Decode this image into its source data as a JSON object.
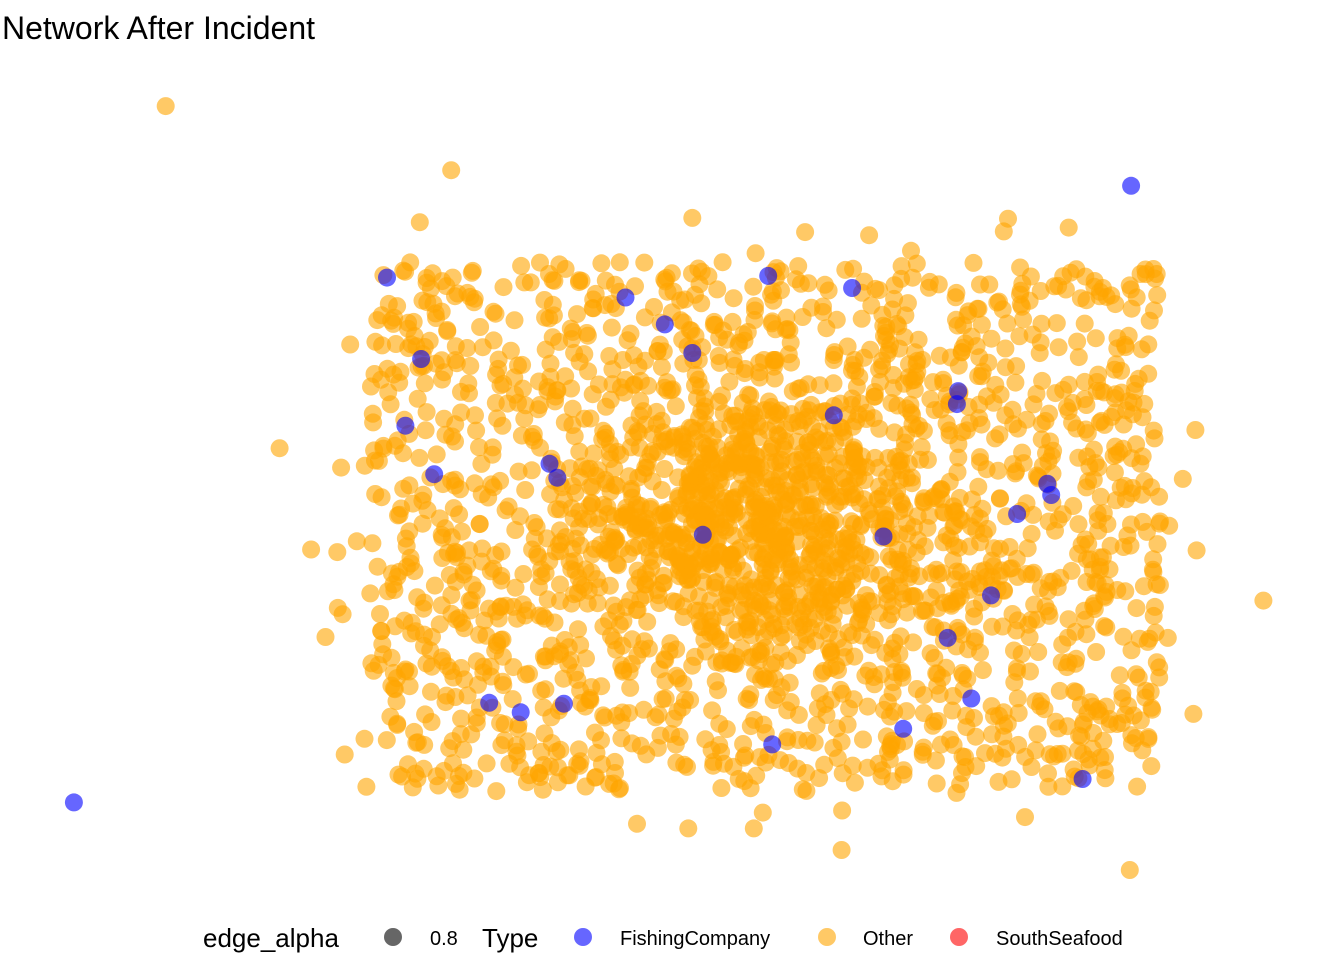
{
  "chart_data": {
    "type": "scatter",
    "title": "Network After Incident",
    "xlabel": "",
    "ylabel": "",
    "grid": false,
    "legend_placement": "bottom",
    "legend": {
      "alpha_title": "edge_alpha",
      "alpha_value": "0.8",
      "type_title": "Type",
      "entries": [
        {
          "name": "FishingCompany",
          "color": "#0000ff"
        },
        {
          "name": "Other",
          "color": "#ffa500"
        },
        {
          "name": "SouthSeafood",
          "color": "#ff0000"
        }
      ]
    },
    "xlim": [
      0,
      100
    ],
    "ylim": [
      0,
      100
    ],
    "series": [
      {
        "name": "FishingCompany",
        "color": "#0000ff",
        "opacity": 0.6,
        "points": [
          [
            4.5,
            11.5
          ],
          [
            85.2,
            82.7
          ],
          [
            28.4,
            72.1
          ],
          [
            31.0,
            62.7
          ],
          [
            46.6,
            69.8
          ],
          [
            57.5,
            72.3
          ],
          [
            63.9,
            70.9
          ],
          [
            72.0,
            59.0
          ],
          [
            29.8,
            55.0
          ],
          [
            32.0,
            49.4
          ],
          [
            41.4,
            49.0
          ],
          [
            52.5,
            42.4
          ],
          [
            66.3,
            42.2
          ],
          [
            78.8,
            48.3
          ],
          [
            76.5,
            44.8
          ],
          [
            38.6,
            21.9
          ],
          [
            41.9,
            22.9
          ],
          [
            36.2,
            23.0
          ],
          [
            57.8,
            18.2
          ],
          [
            67.8,
            20.0
          ],
          [
            73.0,
            23.5
          ],
          [
            81.5,
            14.2
          ],
          [
            71.2,
            30.5
          ],
          [
            74.5,
            35.4
          ],
          [
            79.1,
            47.0
          ],
          [
            62.5,
            56.2
          ],
          [
            40.8,
            50.6
          ],
          [
            51.7,
            63.4
          ],
          [
            49.6,
            66.7
          ],
          [
            71.9,
            57.5
          ]
        ]
      },
      {
        "name": "Other",
        "color": "#ffa500",
        "opacity": 0.6,
        "points": [
          [
            11.5,
            91.9
          ],
          [
            33.3,
            84.5
          ],
          [
            30.9,
            78.5
          ],
          [
            51.7,
            79.0
          ],
          [
            65.2,
            77.0
          ],
          [
            75.8,
            78.9
          ],
          [
            68.4,
            75.2
          ],
          [
            20.2,
            52.4
          ],
          [
            22.6,
            40.7
          ],
          [
            24.6,
            40.4
          ],
          [
            23.7,
            30.6
          ],
          [
            95.3,
            34.8
          ],
          [
            90.2,
            40.6
          ],
          [
            88.0,
            30.5
          ],
          [
            51.4,
            8.5
          ],
          [
            56.4,
            8.5
          ],
          [
            63.1,
            6.0
          ],
          [
            85.1,
            3.7
          ],
          [
            77.1,
            9.8
          ],
          [
            57.3,
            16.1
          ],
          [
            44.8,
            15.9
          ],
          [
            36.0,
            16.0
          ],
          [
            30.0,
            15.9
          ],
          [
            60.4,
            14.9
          ],
          [
            69.3,
            17.0
          ]
        ]
      },
      {
        "name": "SouthSeafood",
        "color": "#ff0000",
        "opacity": 0.6,
        "points": []
      }
    ]
  }
}
